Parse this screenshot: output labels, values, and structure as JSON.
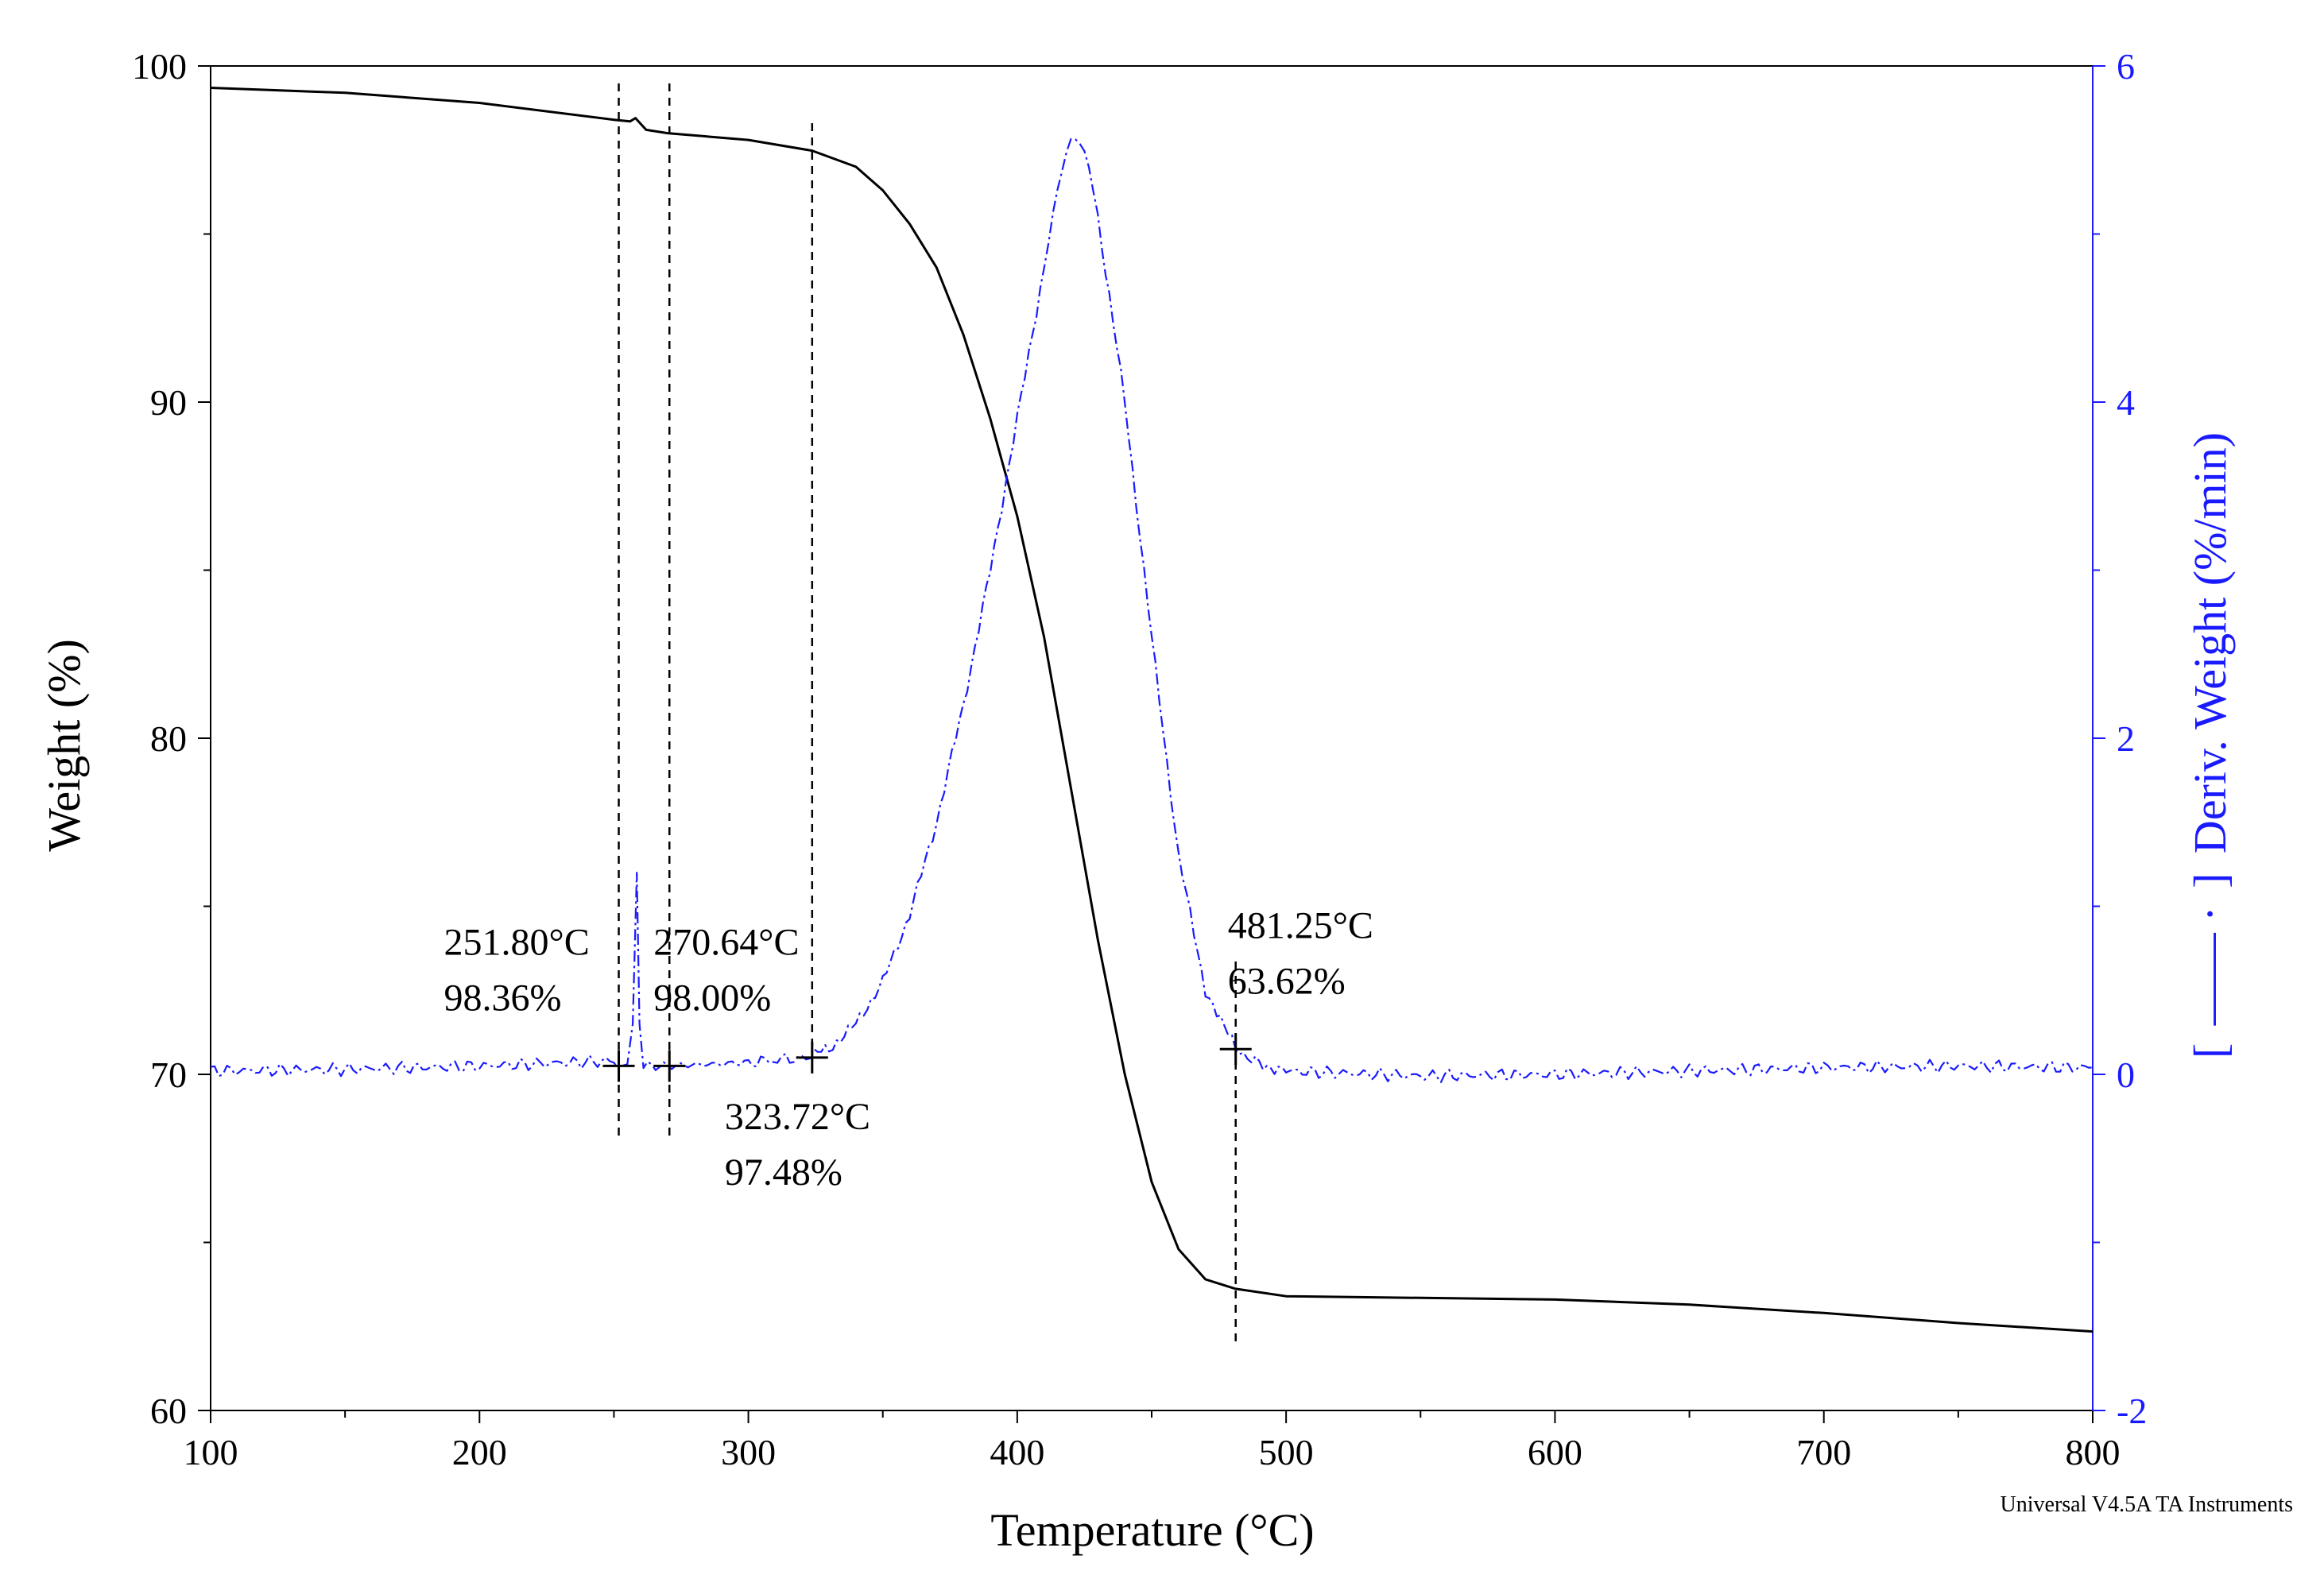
{
  "chart_data": {
    "type": "line",
    "xlabel": "Temperature (°C)",
    "ylabel_left": "Weight (%)",
    "ylabel_right": "Deriv. Weight (%/min)",
    "right_legend_bracket_open": "[",
    "right_legend_symbol": "——  ·",
    "right_legend_bracket_close": "]",
    "footer": "Universal V4.5A TA Instruments",
    "xlim": [
      100,
      800
    ],
    "ylim_left": [
      60,
      100
    ],
    "ylim_right": [
      -2,
      6
    ],
    "x_ticks": [
      "100",
      "200",
      "300",
      "400",
      "500",
      "600",
      "700",
      "800"
    ],
    "y_left_ticks": [
      "60",
      "70",
      "80",
      "90",
      "100"
    ],
    "y_right_ticks": [
      "-2",
      "0",
      "2",
      "4",
      "6"
    ],
    "colors": {
      "weight": "#000000",
      "deriv": "#1a1aff",
      "axis_right": "#1a1aff"
    },
    "series": [
      {
        "name": "Weight",
        "axis": "left",
        "points": [
          [
            100,
            99.35
          ],
          [
            150,
            99.2
          ],
          [
            200,
            98.9
          ],
          [
            250,
            98.4
          ],
          [
            256,
            98.35
          ],
          [
            258,
            98.45
          ],
          [
            262,
            98.1
          ],
          [
            270,
            98.0
          ],
          [
            300,
            97.8
          ],
          [
            323.72,
            97.48
          ],
          [
            340,
            97.0
          ],
          [
            350,
            96.3
          ],
          [
            360,
            95.3
          ],
          [
            370,
            94.0
          ],
          [
            380,
            92.0
          ],
          [
            390,
            89.5
          ],
          [
            400,
            86.6
          ],
          [
            410,
            83.0
          ],
          [
            420,
            78.5
          ],
          [
            430,
            74.0
          ],
          [
            440,
            70.0
          ],
          [
            450,
            66.8
          ],
          [
            460,
            64.8
          ],
          [
            470,
            63.9
          ],
          [
            481.25,
            63.62
          ],
          [
            500,
            63.4
          ],
          [
            550,
            63.35
          ],
          [
            600,
            63.3
          ],
          [
            650,
            63.15
          ],
          [
            700,
            62.9
          ],
          [
            750,
            62.6
          ],
          [
            800,
            62.35
          ]
        ]
      },
      {
        "name": "Deriv. Weight",
        "axis": "right",
        "points": [
          [
            100,
            0.02
          ],
          [
            150,
            0.03
          ],
          [
            200,
            0.05
          ],
          [
            250,
            0.08
          ],
          [
            255,
            0.06
          ],
          [
            257,
            0.3
          ],
          [
            258.5,
            1.2
          ],
          [
            259.5,
            0.3
          ],
          [
            261,
            0.05
          ],
          [
            270,
            0.05
          ],
          [
            300,
            0.07
          ],
          [
            320,
            0.1
          ],
          [
            330,
            0.15
          ],
          [
            340,
            0.3
          ],
          [
            350,
            0.55
          ],
          [
            360,
            0.95
          ],
          [
            370,
            1.5
          ],
          [
            380,
            2.2
          ],
          [
            390,
            3.0
          ],
          [
            400,
            3.9
          ],
          [
            410,
            4.8
          ],
          [
            415,
            5.3
          ],
          [
            420,
            5.6
          ],
          [
            425,
            5.5
          ],
          [
            430,
            5.1
          ],
          [
            440,
            4.0
          ],
          [
            450,
            2.6
          ],
          [
            460,
            1.3
          ],
          [
            470,
            0.5
          ],
          [
            481.25,
            0.15
          ],
          [
            490,
            0.06
          ],
          [
            500,
            0.02
          ],
          [
            550,
            -0.01
          ],
          [
            600,
            0.0
          ],
          [
            650,
            0.02
          ],
          [
            700,
            0.04
          ],
          [
            750,
            0.05
          ],
          [
            800,
            0.04
          ]
        ]
      }
    ],
    "markers": [
      {
        "x": 251.8,
        "y": 98.36,
        "label_x": "251.80°C",
        "label_y": "98.36%"
      },
      {
        "x": 270.64,
        "y": 98.0,
        "label_x": "270.64°C",
        "label_y": "98.00%"
      },
      {
        "x": 323.72,
        "y": 97.48,
        "label_x": "323.72°C",
        "label_y": "97.48%"
      },
      {
        "x": 481.25,
        "y": 63.62,
        "label_x": "481.25°C",
        "label_y": "63.62%"
      }
    ]
  }
}
